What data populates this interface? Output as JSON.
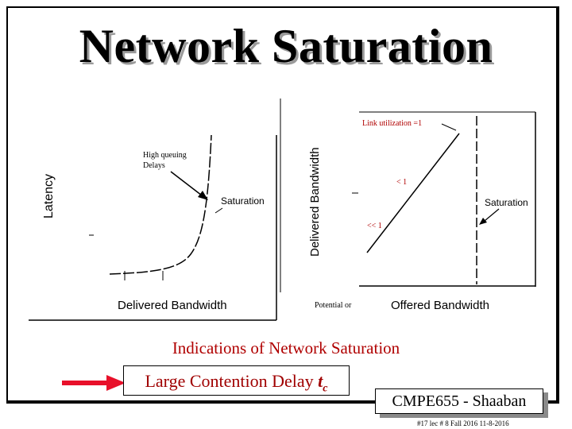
{
  "slide": {
    "title": "Network Saturation",
    "subheading": "Indications of Network Saturation",
    "contention_text": "Large Contention Delay ",
    "contention_t": "t",
    "contention_sub": "c",
    "badge": "CMPE655 - Shaaban",
    "footer": "#17   lec # 8   Fall 2016  11-8-2016"
  },
  "left_plot": {
    "ylabel": "Latency",
    "xlabel": "Delivered Bandwidth",
    "annotation_line1": "High queuing",
    "annotation_line2": "Delays",
    "saturation_label": "Saturation"
  },
  "right_plot": {
    "ylabel": "Delivered Bandwidth",
    "xlabel_prefix": "Potential or ",
    "xlabel": "Offered Bandwidth",
    "link_util": "Link utilization =1",
    "lt1": "< 1",
    "llt1": "<< 1",
    "saturation_label": "Saturation"
  },
  "colors": {
    "accent_red": "#b00000",
    "arrow_red": "#e8102a",
    "badge_shadow": "#8a8a8a"
  }
}
